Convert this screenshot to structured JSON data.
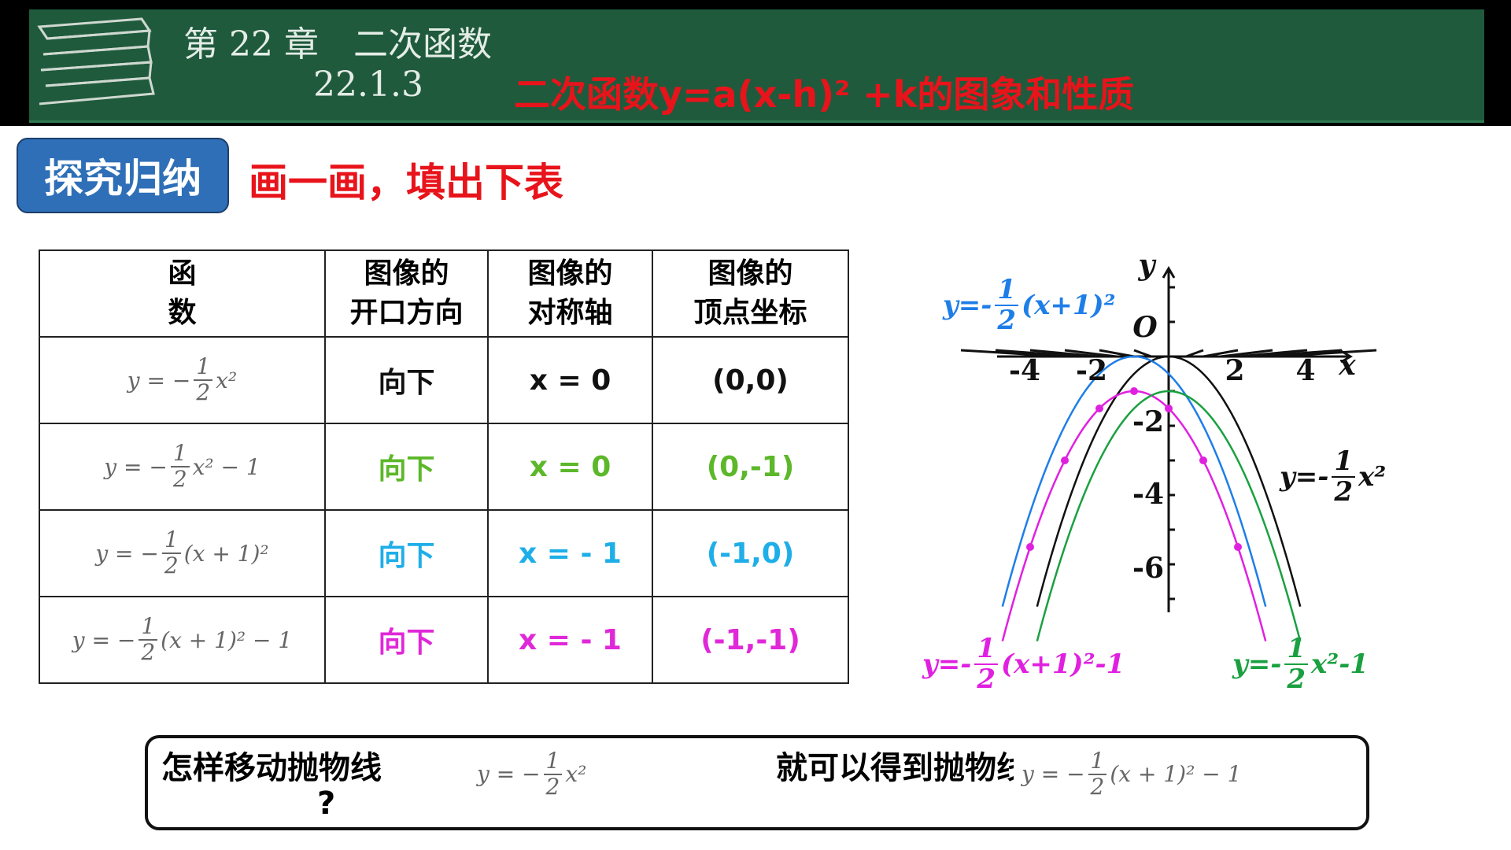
{
  "header": {
    "chapter": "第 22 章　二次函数",
    "section_number": "22.1.3",
    "section_title": "二次函数y=a(x-h)² +k的图象和性质"
  },
  "badge": "探究归纳",
  "instruction": "画一画，填出下表",
  "table": {
    "headers": [
      "函\n数",
      "图像的\n开口方向",
      "图像的\n对称轴",
      "图像的\n顶点坐标"
    ],
    "rows": [
      [
        {
          "pre": "y = −",
          "num": "1",
          "den": "2",
          "post": "x²"
        },
        "向下",
        "x = 0",
        "(0,0)"
      ],
      [
        {
          "pre": "y = −",
          "num": "1",
          "den": "2",
          "post": "x² − 1"
        },
        "向下",
        "x = 0",
        "(0,-1)"
      ],
      [
        {
          "pre": "y = −",
          "num": "1",
          "den": "2",
          "post": "(x + 1)²"
        },
        "向下",
        "x = - 1",
        "(-1,0)"
      ],
      [
        {
          "pre": "y = −",
          "num": "1",
          "den": "2",
          "post": "(x + 1)² − 1"
        },
        "向下",
        "x = - 1",
        "(-1,-1)"
      ]
    ]
  },
  "graph": {
    "x_label": "x",
    "y_label": "y",
    "origin_label": "O",
    "x_tick_labels": [
      "-4",
      "-2",
      "2",
      "4"
    ],
    "y_tick_labels": [
      "-2",
      "-4",
      "-6"
    ],
    "curve_labels": [
      {
        "pre": "y=-",
        "num": "1",
        "den": "2",
        "post": "(x+1)²"
      },
      {
        "pre": "y=-",
        "num": "1",
        "den": "2",
        "post": "x²"
      },
      {
        "pre": "y=-",
        "num": "1",
        "den": "2",
        "post": "(x+1)²-1"
      },
      {
        "pre": "y=-",
        "num": "1",
        "den": "2",
        "post": "x²-1"
      }
    ]
  },
  "question": {
    "part1": "怎样移动抛物线",
    "mark": "?",
    "from": {
      "pre": "y = −",
      "num": "1",
      "den": "2",
      "post": "x²"
    },
    "part2": "就可以得到抛物线",
    "to": {
      "pre": "y = −",
      "num": "1",
      "den": "2",
      "post": "(x + 1)² − 1"
    }
  }
}
